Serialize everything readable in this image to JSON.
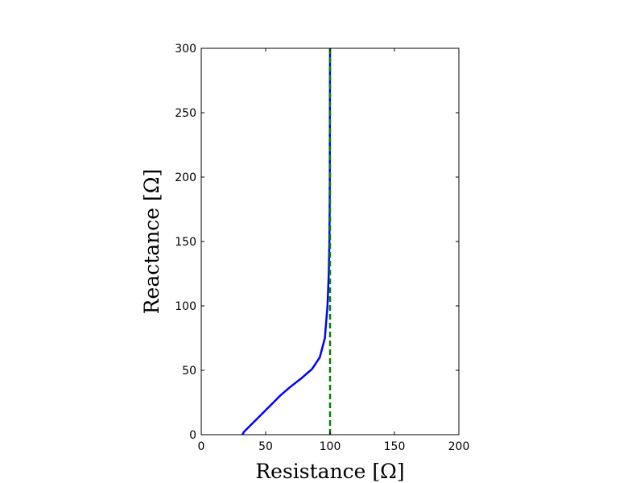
{
  "chart_data": {
    "type": "line",
    "xlabel": "Resistance [Ω]",
    "ylabel": "Reactance [Ω]",
    "xlim": [
      0,
      200
    ],
    "ylim": [
      0,
      300
    ],
    "xticks": [
      0,
      50,
      100,
      150,
      200
    ],
    "yticks": [
      0,
      50,
      100,
      150,
      200,
      250,
      300
    ],
    "xtick_labels": [
      "0",
      "50",
      "100",
      "150",
      "200"
    ],
    "ytick_labels": [
      "0",
      "50",
      "100",
      "150",
      "200",
      "250",
      "300"
    ],
    "grid": false,
    "series": [
      {
        "color": "#0000ff",
        "style": "solid",
        "points": [
          [
            32,
            0
          ],
          [
            33,
            2
          ],
          [
            38,
            7
          ],
          [
            45,
            14
          ],
          [
            55,
            24
          ],
          [
            62,
            31
          ],
          [
            69,
            37
          ],
          [
            78,
            44
          ],
          [
            86,
            51
          ],
          [
            92,
            60
          ],
          [
            96,
            75
          ],
          [
            98,
            100
          ],
          [
            99,
            125
          ],
          [
            99.5,
            150
          ],
          [
            99.7,
            175
          ],
          [
            99.8,
            200
          ],
          [
            99.9,
            250
          ],
          [
            100,
            300
          ]
        ]
      },
      {
        "color": "#008000",
        "style": "dashed",
        "points": [
          [
            100,
            0
          ],
          [
            100,
            300
          ]
        ]
      }
    ]
  }
}
